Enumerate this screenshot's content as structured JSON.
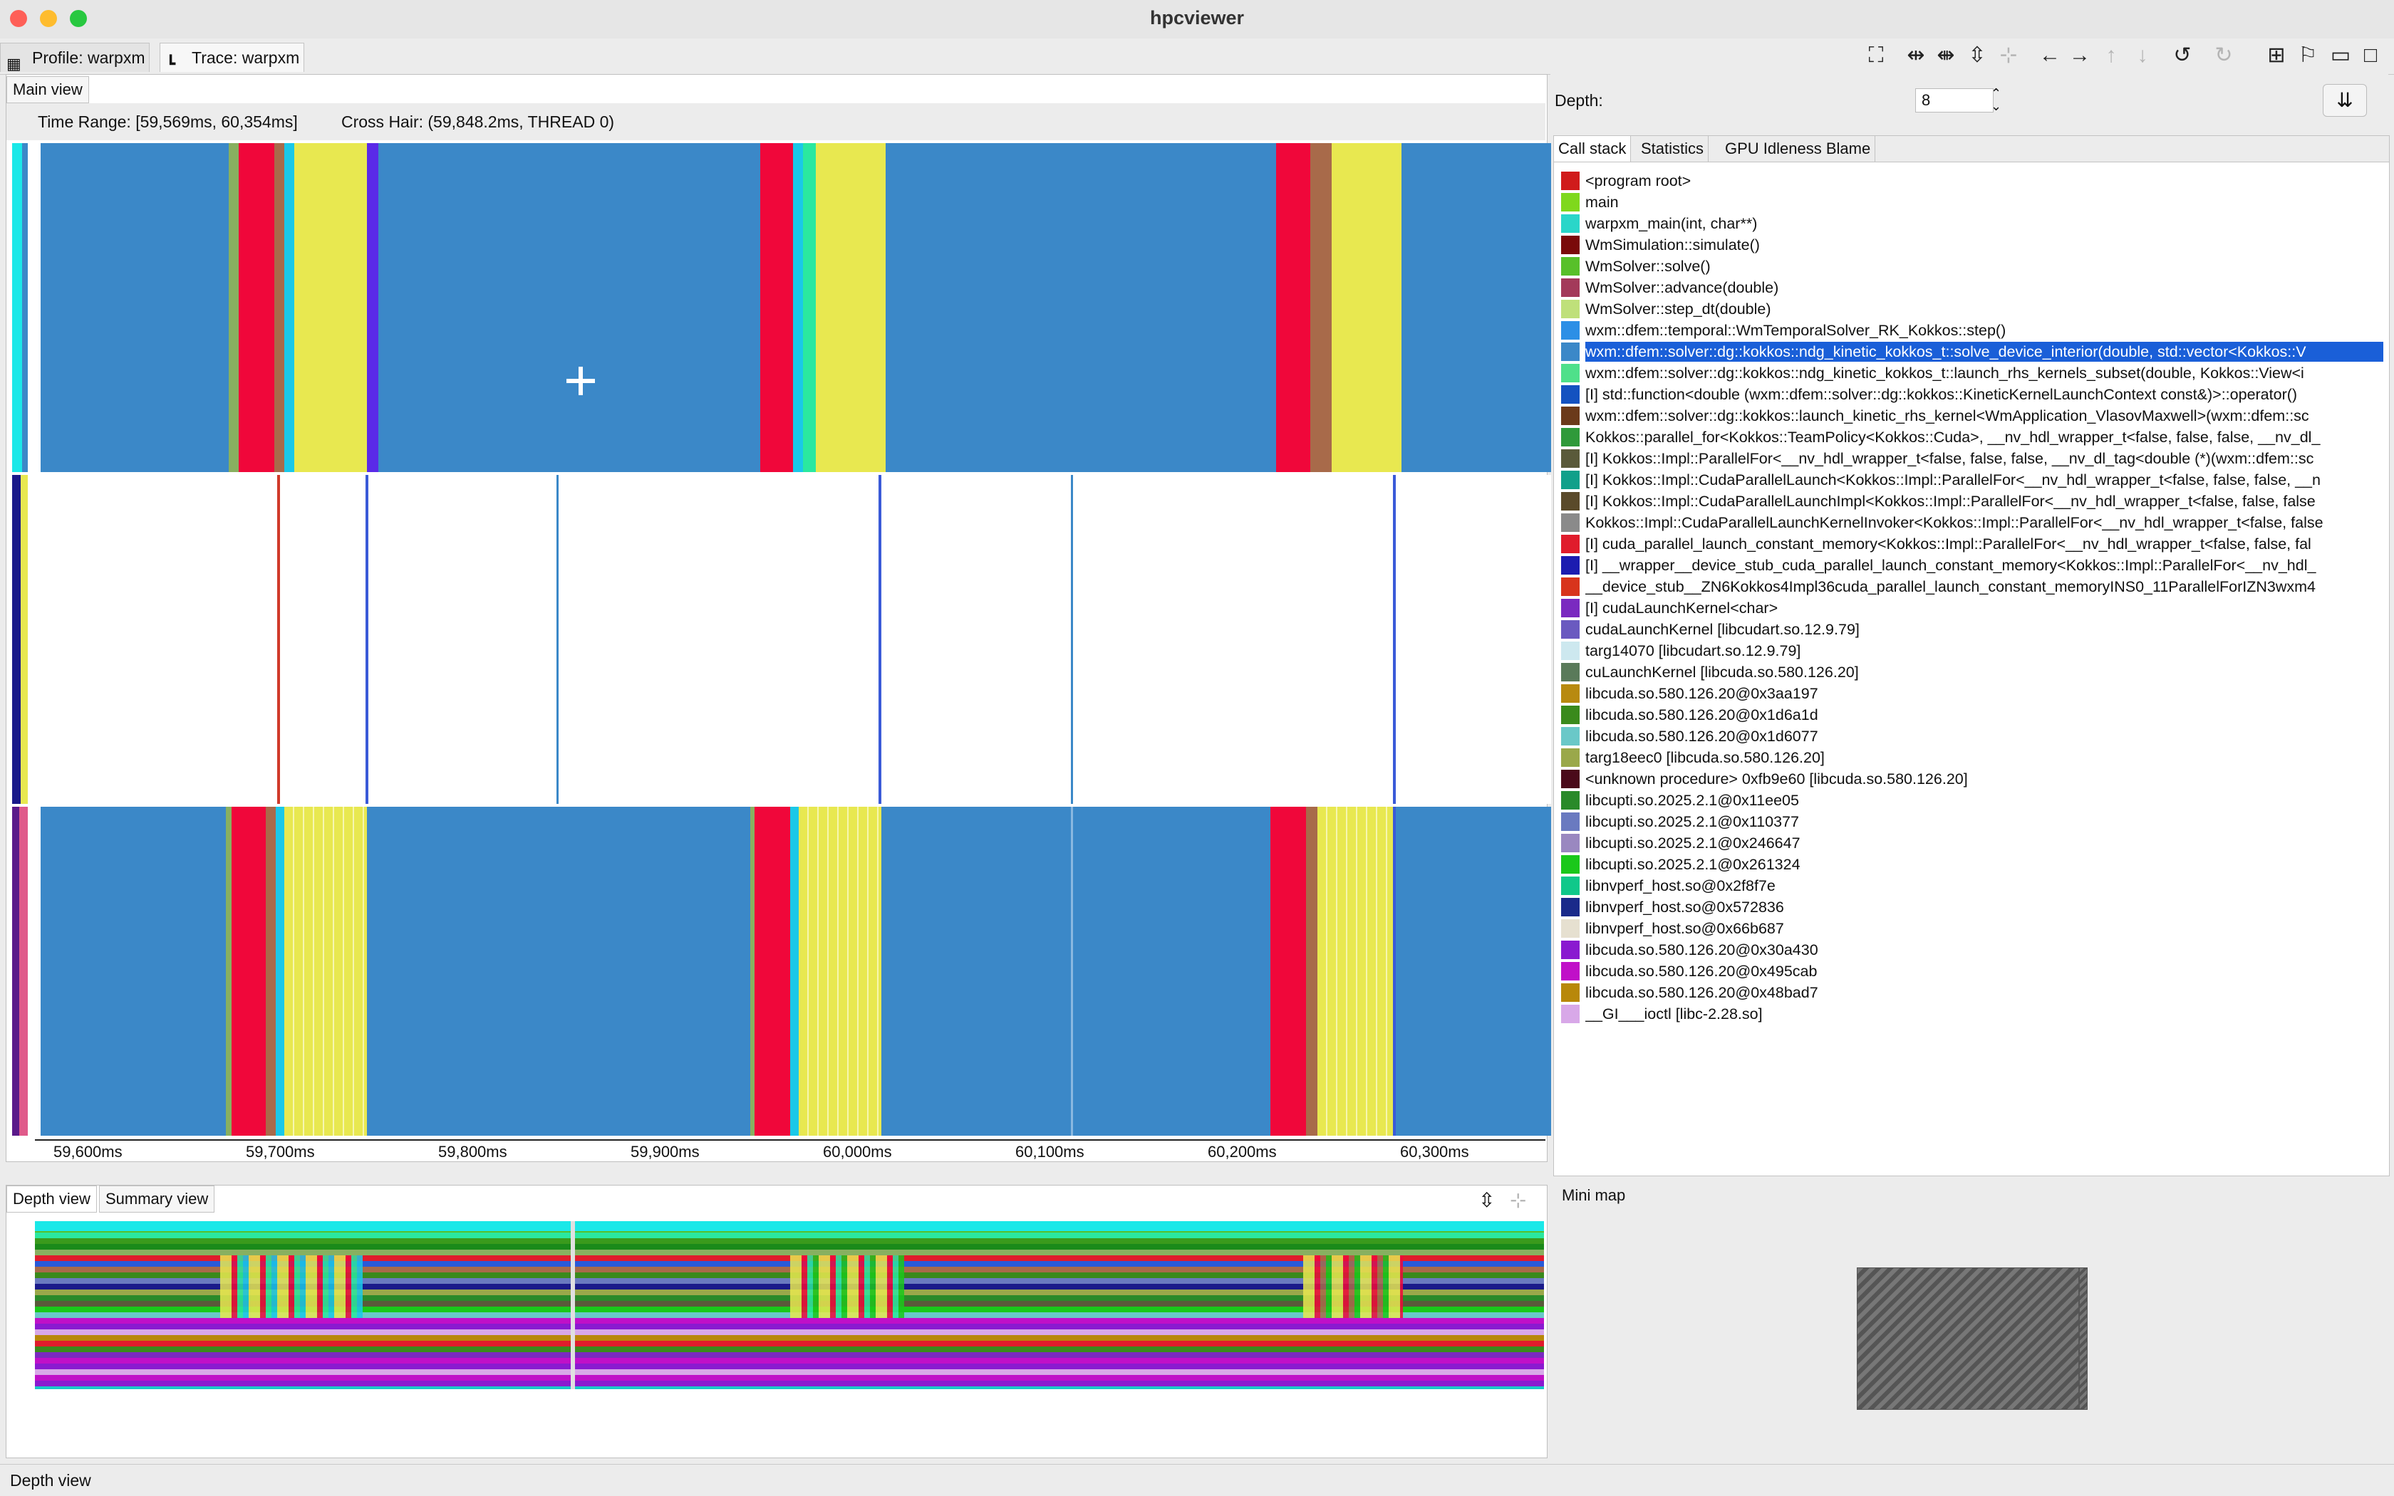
{
  "window": {
    "title": "hpcviewer"
  },
  "tabs": [
    {
      "label": "Profile: warpxm",
      "icon": "table-icon"
    },
    {
      "label": "Trace: warpxm",
      "icon": "trace-icon",
      "active": true
    }
  ],
  "toolbar_icons": [
    "fullscreen-icon",
    "zoom-h-fit-icon",
    "zoom-h-in-icon",
    "zoom-v-fit-icon",
    "zoom-v-in-icon",
    "arrow-left-icon",
    "arrow-right-icon",
    "arrow-up-icon",
    "arrow-down-icon",
    "undo-icon",
    "redo-icon",
    "add-bookmark-icon",
    "bookmark-icon",
    "minimize-icon",
    "maximize-icon"
  ],
  "main_view": {
    "tab_label": "Main view",
    "time_range": "Time Range: [59,569ms, 60,354ms]",
    "cross_hair": "Cross Hair: (59,848.2ms, THREAD 0)",
    "axis_ticks": [
      "59,600ms",
      "59,700ms",
      "59,800ms",
      "59,900ms",
      "60,000ms",
      "60,100ms",
      "60,200ms",
      "60,300ms"
    ]
  },
  "depth_view": {
    "tab_depth": "Depth view",
    "tab_summary": "Summary view"
  },
  "depth_control": {
    "label": "Depth:",
    "value": "8"
  },
  "callstack_tabs": [
    "Call stack",
    "Statistics",
    "GPU Idleness Blame"
  ],
  "callstack": [
    {
      "color": "#d01b1b",
      "name": "<program root>"
    },
    {
      "color": "#7fd81c",
      "name": "main"
    },
    {
      "color": "#2ad6c9",
      "name": "warpxm_main(int, char**)"
    },
    {
      "color": "#7a0a0a",
      "name": "WmSimulation::simulate()"
    },
    {
      "color": "#58c02a",
      "name": "WmSolver::solve()"
    },
    {
      "color": "#a33a5a",
      "name": "WmSolver::advance(double)"
    },
    {
      "color": "#bfe07a",
      "name": "WmSolver::step_dt(double)"
    },
    {
      "color": "#2c8fe6",
      "name": "wxm::dfem::temporal::WmTemporalSolver_RK_Kokkos::step()"
    },
    {
      "color": "#3b88c8",
      "name": "wxm::dfem::solver::dg::kokkos::ndg_kinetic_kokkos_t::solve_device_interior(double, std::vector<Kokkos::V",
      "selected": true
    },
    {
      "color": "#4fe08a",
      "name": "wxm::dfem::solver::dg::kokkos::ndg_kinetic_kokkos_t::launch_rhs_kernels_subset(double, Kokkos::View<i"
    },
    {
      "color": "#1452c0",
      "name": "[I] std::function<double (wxm::dfem::solver::dg::kokkos::KineticKernelLaunchContext const&)>::operator()"
    },
    {
      "color": "#6b3a1a",
      "name": "wxm::dfem::solver::dg::kokkos::launch_kinetic_rhs_kernel<WmApplication_VlasovMaxwell>(wxm::dfem::sc"
    },
    {
      "color": "#2f9a3a",
      "name": "Kokkos::parallel_for<Kokkos::TeamPolicy<Kokkos::Cuda>, __nv_hdl_wrapper_t<false, false, false, __nv_dl_"
    },
    {
      "color": "#5a5a3a",
      "name": "[I] Kokkos::Impl::ParallelFor<__nv_hdl_wrapper_t<false, false, false, __nv_dl_tag<double (*)(wxm::dfem::sc"
    },
    {
      "color": "#11a08a",
      "name": "[I] Kokkos::Impl::CudaParallelLaunch<Kokkos::Impl::ParallelFor<__nv_hdl_wrapper_t<false, false, false, __n"
    },
    {
      "color": "#5a4a2a",
      "name": "[I] Kokkos::Impl::CudaParallelLaunchImpl<Kokkos::Impl::ParallelFor<__nv_hdl_wrapper_t<false, false, false"
    },
    {
      "color": "#8a8a8a",
      "name": "Kokkos::Impl::CudaParallelLaunchKernelInvoker<Kokkos::Impl::ParallelFor<__nv_hdl_wrapper_t<false, false"
    },
    {
      "color": "#e01c2c",
      "name": "[I] cuda_parallel_launch_constant_memory<Kokkos::Impl::ParallelFor<__nv_hdl_wrapper_t<false, false, fal"
    },
    {
      "color": "#1c1cb0",
      "name": "[I] __wrapper__device_stub_cuda_parallel_launch_constant_memory<Kokkos::Impl::ParallelFor<__nv_hdl_"
    },
    {
      "color": "#d8341c",
      "name": "__device_stub__ZN6Kokkos4Impl36cuda_parallel_launch_constant_memoryINS0_11ParallelForIZN3wxm4"
    },
    {
      "color": "#7a2ac0",
      "name": "[I] cudaLaunchKernel<char>"
    },
    {
      "color": "#6a5ac0",
      "name": "cudaLaunchKernel [libcudart.so.12.9.79]"
    },
    {
      "color": "#cde8ef",
      "name": "targ14070 [libcudart.so.12.9.79]"
    },
    {
      "color": "#5a7a5a",
      "name": "cuLaunchKernel [libcuda.so.580.126.20]"
    },
    {
      "color": "#b88a10",
      "name": "libcuda.so.580.126.20@0x3aa197"
    },
    {
      "color": "#3a8a1c",
      "name": "libcuda.so.580.126.20@0x1d6a1d"
    },
    {
      "color": "#6ac8c8",
      "name": "libcuda.so.580.126.20@0x1d6077"
    },
    {
      "color": "#9aa84a",
      "name": "targ18eec0 [libcuda.so.580.126.20]"
    },
    {
      "color": "#4a0a1a",
      "name": "<unknown procedure> 0xfb9e60 [libcuda.so.580.126.20]"
    },
    {
      "color": "#2a8a2a",
      "name": "libcupti.so.2025.2.1@0x11ee05"
    },
    {
      "color": "#6a7ac0",
      "name": "libcupti.so.2025.2.1@0x110377"
    },
    {
      "color": "#9a88c0",
      "name": "libcupti.so.2025.2.1@0x246647"
    },
    {
      "color": "#1ac81a",
      "name": "libcupti.so.2025.2.1@0x261324"
    },
    {
      "color": "#10c88a",
      "name": "libnvperf_host.so@0x2f8f7e"
    },
    {
      "color": "#1a2a8a",
      "name": "libnvperf_host.so@0x572836"
    },
    {
      "color": "#e6e0d0",
      "name": "libnvperf_host.so@0x66b687"
    },
    {
      "color": "#8a1ad0",
      "name": "libcuda.so.580.126.20@0x30a430"
    },
    {
      "color": "#c010c8",
      "name": "libcuda.so.580.126.20@0x495cab"
    },
    {
      "color": "#b8880a",
      "name": "libcuda.so.580.126.20@0x48bad7"
    },
    {
      "color": "#d8a8e8",
      "name": "__GI___ioctl [libc-2.28.so]"
    }
  ],
  "minimap": {
    "label": "Mini map"
  },
  "status": {
    "text": "Depth view"
  },
  "colors": {
    "blue": "#3b88c8",
    "red": "#f0073a",
    "yellow": "#e8e850",
    "selection": "#1a5fd8"
  }
}
